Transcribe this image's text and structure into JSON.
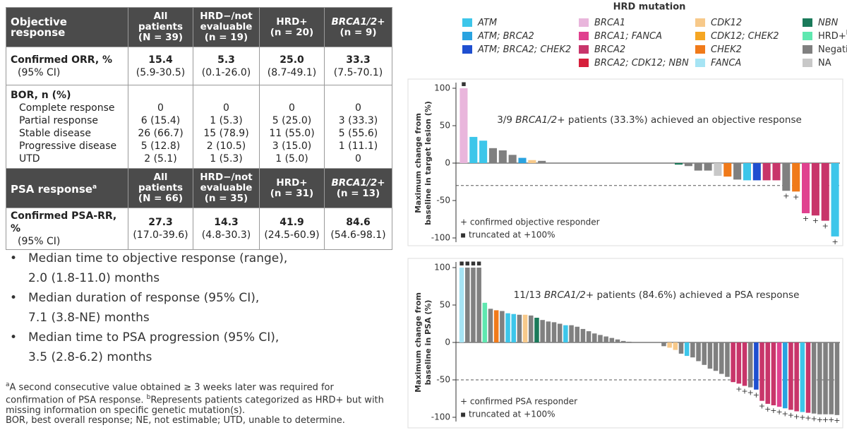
{
  "table": {
    "sections": [
      {
        "header": [
          [
            "Objective response"
          ],
          [
            "All patients",
            "(N = 39)"
          ],
          [
            "HRD−/not",
            "evaluable",
            "(n = 19)"
          ],
          [
            "HRD+",
            "(n = 20)"
          ],
          [
            "BRCA1/2+",
            "(n = 9)"
          ]
        ],
        "rows": [
          [
            [
              "Confirmed ORR, %",
              "(95% CI)"
            ],
            [
              "15.4",
              "(5.9-30.5)"
            ],
            [
              "5.3",
              "(0.1-26.0)"
            ],
            [
              "25.0",
              "(8.7-49.1)"
            ],
            [
              "33.3",
              "(7.5-70.1)"
            ]
          ],
          [
            [
              "BOR, n (%)",
              "Complete response",
              "Partial response",
              "Stable disease",
              "Progressive disease",
              "UTD"
            ],
            [
              "0",
              "6 (15.4)",
              "26 (66.7)",
              "5 (12.8)",
              "2 (5.1)"
            ],
            [
              "0",
              "1 (5.3)",
              "15 (78.9)",
              "2 (10.5)",
              "1 (5.3)"
            ],
            [
              "0",
              "5 (25.0)",
              "11 (55.0)",
              "3 (15.0)",
              "1 (5.0)"
            ],
            [
              "0",
              "3 (33.3)",
              "5 (55.6)",
              "1 (11.1)",
              "0"
            ]
          ]
        ]
      },
      {
        "header": [
          [
            "PSA response"
          ],
          [
            "All patients",
            "(N = 66)"
          ],
          [
            "HRD−/not",
            "evaluable",
            "(n = 35)"
          ],
          [
            "HRD+",
            "(n = 31)"
          ],
          [
            "BRCA1/2+",
            "(n = 13)"
          ]
        ],
        "header_sup": "a",
        "rows": [
          [
            [
              "Confirmed PSA-RR, %",
              "(95% CI)"
            ],
            [
              "27.3",
              "(17.0-39.6)"
            ],
            [
              "14.3",
              "(4.8-30.3)"
            ],
            [
              "41.9",
              "(24.5-60.9)"
            ],
            [
              "84.6",
              "(54.6-98.1)"
            ]
          ]
        ]
      }
    ]
  },
  "bullets": [
    [
      "Median time to objective response (range),",
      "2.0 (1.8-11.0) months"
    ],
    [
      "Median duration of response (95% CI),",
      "7.1 (3.8-NE) months"
    ],
    [
      "Median time to PSA progression (95% CI),",
      "3.5 (2.8-6.2) months"
    ]
  ],
  "footnotes": {
    "a_sup": "a",
    "a_text": "A second consecutive value obtained ≥ 3 weeks later was required for confirmation of PSA response. ",
    "b_sup": "b",
    "b_text": "Represents patients categorized as HRD+ but with missing information on specific genetic mutation(s).",
    "abbreviations": "BOR, best overall response; NE, not estimable; UTD, unable to determine."
  },
  "legend": {
    "title": "HRD mutation",
    "items": [
      {
        "label": "ATM",
        "color": "#3dc6ea",
        "italic": true
      },
      {
        "label": "ATM; BRCA2",
        "color": "#2aa3e0",
        "italic": true
      },
      {
        "label": "ATM; BRCA2; CHEK2",
        "color": "#1f4fd0",
        "italic": true
      },
      {
        "label": "BRCA1",
        "color": "#e9b6dc",
        "italic": true
      },
      {
        "label": "BRCA1; FANCA",
        "color": "#e0418f",
        "italic": true
      },
      {
        "label": "BRCA2",
        "color": "#c8356a",
        "italic": true
      },
      {
        "label": "BRCA2; CDK12; NBN",
        "color": "#d61f3c",
        "italic": true
      },
      {
        "label": "CDK12",
        "color": "#f7c98a",
        "italic": true
      },
      {
        "label": "CDK12; CHEK2",
        "color": "#f5a623",
        "italic": true
      },
      {
        "label": "CHEK2",
        "color": "#f07a1a",
        "italic": true
      },
      {
        "label": "FANCA",
        "color": "#a6e4f4",
        "italic": true
      },
      {
        "label": "NBN",
        "color": "#1a7a5a",
        "italic": true
      },
      {
        "label": "HRD+",
        "sup": "b",
        "color": "#5fe8b0",
        "italic": false
      },
      {
        "label": "Negative",
        "color": "#808080",
        "italic": false
      },
      {
        "label": "NA",
        "color": "#c8c8c8",
        "italic": false
      }
    ]
  },
  "chart_data": [
    {
      "type": "bar",
      "ylabel": [
        "Maximum change from",
        "baseline in target lesion (%)"
      ],
      "annotation": [
        "3/9 ",
        "BRCA1/2+",
        " patients (33.3%) achieved an objective response"
      ],
      "notes": [
        "+ confirmed objective responder",
        "▪ truncated at +100%"
      ],
      "ylim": [
        -100,
        100
      ],
      "yticks": [
        -100,
        -50,
        0,
        50,
        100
      ],
      "reference_line": -30,
      "values": [
        100,
        35,
        30,
        20,
        17,
        11,
        7,
        4,
        3,
        0,
        0,
        0,
        0,
        0,
        0,
        0,
        0,
        0,
        0,
        0,
        0,
        0,
        -2,
        -4,
        -10,
        -10,
        -17,
        -18,
        -22,
        -23,
        -23,
        -23,
        -23,
        -37,
        -38,
        -67,
        -70,
        -77,
        -98
      ],
      "colors": [
        "#e9b6dc",
        "#3dc6ea",
        "#3dc6ea",
        "#808080",
        "#808080",
        "#808080",
        "#2aa3e0",
        "#f7c98a",
        "#808080",
        "#808080",
        "#808080",
        "#808080",
        "#808080",
        "#808080",
        "#808080",
        "#808080",
        "#808080",
        "#808080",
        "#808080",
        "#808080",
        "#808080",
        "#808080",
        "#1a7a5a",
        "#808080",
        "#808080",
        "#808080",
        "#c8c8c8",
        "#f07a1a",
        "#808080",
        "#3dc6ea",
        "#1f4fd0",
        "#c8356a",
        "#c8356a",
        "#808080",
        "#f07a1a",
        "#e0418f",
        "#c8356a",
        "#c8356a",
        "#3dc6ea"
      ],
      "markers": [
        "▪",
        null,
        null,
        null,
        null,
        null,
        null,
        null,
        null,
        null,
        null,
        null,
        null,
        null,
        null,
        null,
        null,
        null,
        null,
        null,
        null,
        null,
        null,
        null,
        null,
        null,
        null,
        null,
        null,
        null,
        null,
        null,
        null,
        "+",
        "+",
        "+",
        "+",
        "+",
        "+"
      ]
    },
    {
      "type": "bar",
      "ylabel": [
        "Maximum change from",
        "baseline in PSA (%)"
      ],
      "annotation": [
        "11/13 ",
        "BRCA1/2+",
        " patients (84.6%) achieved a PSA response"
      ],
      "notes": [
        "+ confirmed PSA responder",
        "▪ truncated at +100%"
      ],
      "ylim": [
        -100,
        100
      ],
      "yticks": [
        -100,
        -50,
        0,
        50,
        100
      ],
      "reference_line": -50,
      "values": [
        100,
        100,
        100,
        100,
        53,
        45,
        43,
        42,
        39,
        38,
        37,
        37,
        36,
        33,
        30,
        28,
        27,
        25,
        23,
        23,
        21,
        18,
        15,
        12,
        10,
        8,
        6,
        4,
        2,
        1,
        0,
        0,
        0,
        0,
        0,
        -5,
        -7,
        -10,
        -15,
        -18,
        -20,
        -25,
        -30,
        -35,
        -38,
        -42,
        -46,
        -53,
        -55,
        -58,
        -60,
        -63,
        -78,
        -82,
        -84,
        -86,
        -88,
        -90,
        -92,
        -93,
        -94,
        -95,
        -96,
        -96,
        -96,
        -97
      ],
      "colors": [
        "#a6e4f4",
        "#808080",
        "#808080",
        "#808080",
        "#5fe8b0",
        "#808080",
        "#f07a1a",
        "#808080",
        "#3dc6ea",
        "#3dc6ea",
        "#808080",
        "#f7c98a",
        "#808080",
        "#1a7a5a",
        "#808080",
        "#808080",
        "#808080",
        "#808080",
        "#3dc6ea",
        "#808080",
        "#808080",
        "#808080",
        "#808080",
        "#808080",
        "#808080",
        "#808080",
        "#808080",
        "#808080",
        "#808080",
        "#808080",
        "#808080",
        "#808080",
        "#808080",
        "#808080",
        "#808080",
        "#808080",
        "#f7c98a",
        "#f7c98a",
        "#808080",
        "#3dc6ea",
        "#808080",
        "#808080",
        "#808080",
        "#808080",
        "#808080",
        "#808080",
        "#808080",
        "#c8356a",
        "#c8356a",
        "#c8356a",
        "#808080",
        "#1f4fd0",
        "#c8356a",
        "#c8356a",
        "#c8356a",
        "#e0418f",
        "#2aa3e0",
        "#c8356a",
        "#c8356a",
        "#3dc6ea",
        "#c8356a",
        "#808080",
        "#808080",
        "#808080",
        "#808080",
        "#808080"
      ],
      "markers": [
        "▪",
        "▪",
        "▪",
        "▪",
        null,
        null,
        null,
        null,
        null,
        null,
        null,
        null,
        null,
        null,
        null,
        null,
        null,
        null,
        null,
        null,
        null,
        null,
        null,
        null,
        null,
        null,
        null,
        null,
        null,
        null,
        null,
        null,
        null,
        null,
        null,
        null,
        null,
        null,
        null,
        null,
        null,
        null,
        null,
        null,
        null,
        null,
        null,
        null,
        "+",
        "+",
        "+",
        "+",
        "+",
        "+",
        "+",
        "+",
        "+",
        "+",
        "+",
        "+",
        "+",
        "+",
        "+",
        "+",
        "+",
        "+"
      ]
    }
  ]
}
